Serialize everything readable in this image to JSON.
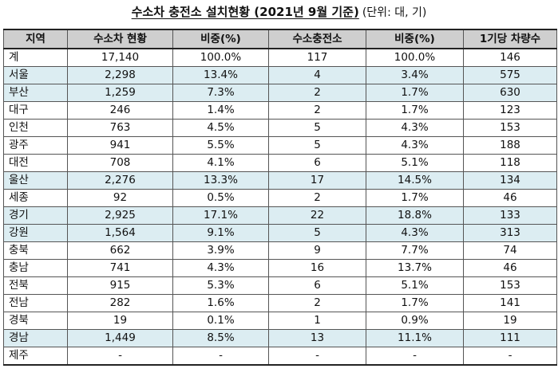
{
  "title": {
    "main": "수소차 충전소 설치현황 (2021년 9월 기준)",
    "unit": "(단위: 대, 기)"
  },
  "colors": {
    "header_bg": "#cfcfcf",
    "highlight_row_bg": "#dcedf2"
  },
  "table": {
    "headers": [
      "지역",
      "수소차 현황",
      "비중(%)",
      "수소충전소",
      "비중(%)",
      "1기당 차량수"
    ],
    "rows": [
      {
        "cells": [
          "계",
          "17,140",
          "100.0%",
          "117",
          "100.0%",
          "146"
        ],
        "highlight": false
      },
      {
        "cells": [
          "서울",
          "2,298",
          "13.4%",
          "4",
          "3.4%",
          "575"
        ],
        "highlight": true
      },
      {
        "cells": [
          "부산",
          "1,259",
          "7.3%",
          "2",
          "1.7%",
          "630"
        ],
        "highlight": true
      },
      {
        "cells": [
          "대구",
          "246",
          "1.4%",
          "2",
          "1.7%",
          "123"
        ],
        "highlight": false
      },
      {
        "cells": [
          "인천",
          "763",
          "4.5%",
          "5",
          "4.3%",
          "153"
        ],
        "highlight": false
      },
      {
        "cells": [
          "광주",
          "941",
          "5.5%",
          "5",
          "4.3%",
          "188"
        ],
        "highlight": false
      },
      {
        "cells": [
          "대전",
          "708",
          "4.1%",
          "6",
          "5.1%",
          "118"
        ],
        "highlight": false
      },
      {
        "cells": [
          "울산",
          "2,276",
          "13.3%",
          "17",
          "14.5%",
          "134"
        ],
        "highlight": true
      },
      {
        "cells": [
          "세종",
          "92",
          "0.5%",
          "2",
          "1.7%",
          "46"
        ],
        "highlight": false
      },
      {
        "cells": [
          "경기",
          "2,925",
          "17.1%",
          "22",
          "18.8%",
          "133"
        ],
        "highlight": true
      },
      {
        "cells": [
          "강원",
          "1,564",
          "9.1%",
          "5",
          "4.3%",
          "313"
        ],
        "highlight": true
      },
      {
        "cells": [
          "충북",
          "662",
          "3.9%",
          "9",
          "7.7%",
          "74"
        ],
        "highlight": false
      },
      {
        "cells": [
          "충남",
          "741",
          "4.3%",
          "16",
          "13.7%",
          "46"
        ],
        "highlight": false
      },
      {
        "cells": [
          "전북",
          "915",
          "5.3%",
          "6",
          "5.1%",
          "153"
        ],
        "highlight": false
      },
      {
        "cells": [
          "전남",
          "282",
          "1.6%",
          "2",
          "1.7%",
          "141"
        ],
        "highlight": false
      },
      {
        "cells": [
          "경북",
          "19",
          "0.1%",
          "1",
          "0.9%",
          "19"
        ],
        "highlight": false
      },
      {
        "cells": [
          "경남",
          "1,449",
          "8.5%",
          "13",
          "11.1%",
          "111"
        ],
        "highlight": true
      },
      {
        "cells": [
          "제주",
          "-",
          "-",
          "-",
          "-",
          "-"
        ],
        "highlight": false
      }
    ]
  }
}
